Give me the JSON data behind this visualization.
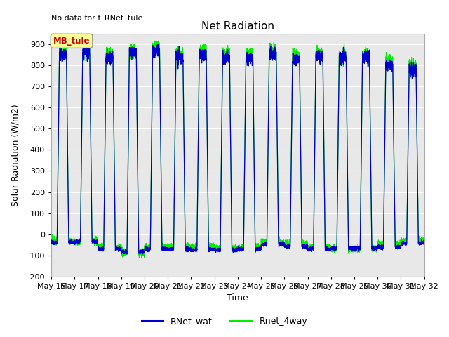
{
  "title": "Net Radiation",
  "xlabel": "Time",
  "ylabel": "Solar Radiation (W/m2)",
  "ylim": [
    -200,
    950
  ],
  "yticks": [
    -200,
    -100,
    0,
    100,
    200,
    300,
    400,
    500,
    600,
    700,
    800,
    900
  ],
  "line1_color": "#0000cc",
  "line2_color": "#00ee00",
  "line1_label": "RNet_wat",
  "line2_label": "Rnet_4way",
  "annotation_text": "No data for f_RNet_tule",
  "box_text": "MB_tule",
  "box_color": "#ffff99",
  "box_text_color": "#cc0000",
  "n_days": 16,
  "points_per_day": 288,
  "start_day": 16,
  "background_color": "#e8e8e8",
  "figsize": [
    6.4,
    4.8
  ],
  "dpi": 100
}
